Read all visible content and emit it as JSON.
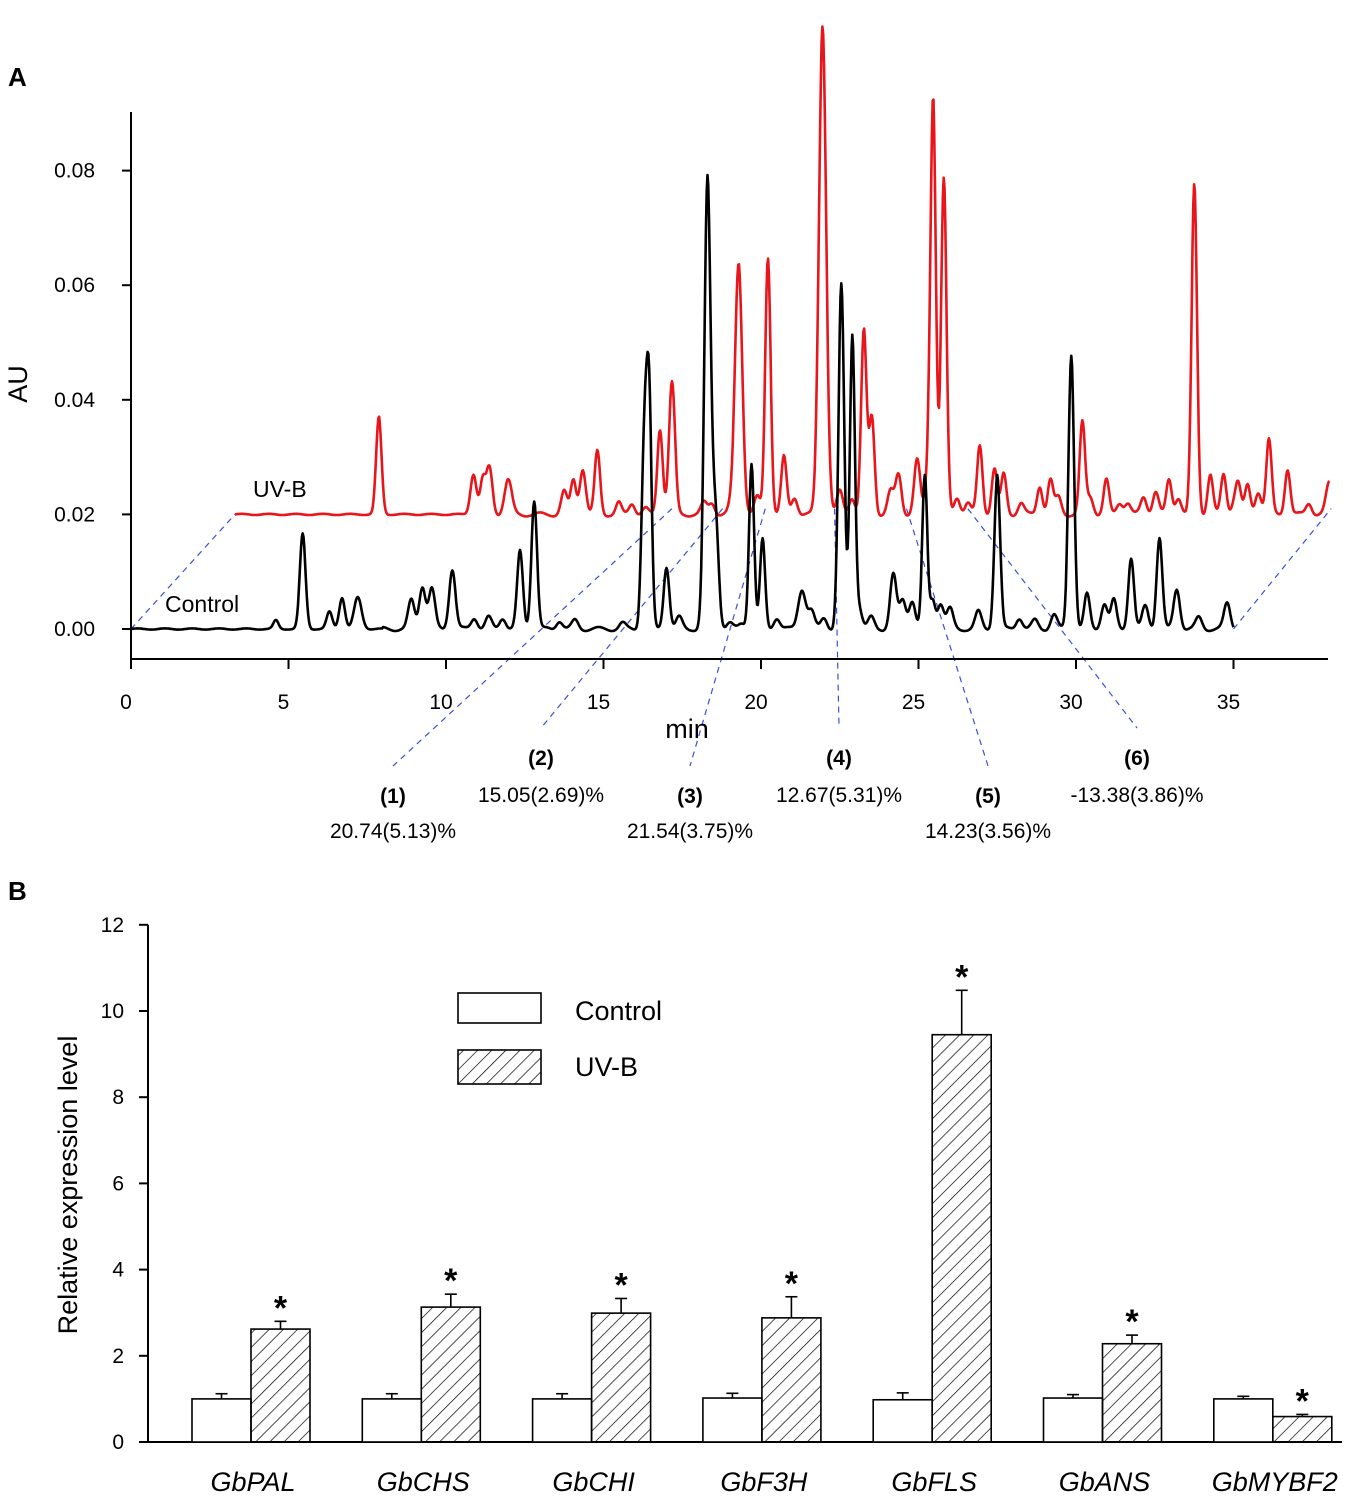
{
  "colors": {
    "uvb_trace": "#e8151b",
    "control_trace": "#000000",
    "guide": "#3b4fd8",
    "axis": "#000000"
  },
  "panels": {
    "a_label": "A",
    "b_label": "B"
  },
  "chart_data": [
    {
      "type": "line",
      "panel": "A",
      "title": "",
      "xlabel": "min",
      "ylabel": "AU",
      "xlim": [
        0,
        38
      ],
      "ylim": [
        -0.005,
        0.09
      ],
      "xticks": [
        "0",
        "5",
        "10",
        "15",
        "20",
        "25",
        "30",
        "35"
      ],
      "yticks": [
        "0.00",
        "0.02",
        "0.04",
        "0.06",
        "0.08"
      ],
      "series": [
        {
          "name": "UV-B",
          "offset": {
            "x_min": 3.3,
            "y_au": 0.02
          },
          "range": [
            0,
            34.9
          ],
          "baseline": 0.0,
          "peaks": [
            [
              5.4,
              0.017,
              0.09
            ],
            [
              8.95,
              0.007,
              0.1
            ],
            [
              9.3,
              0.006,
              0.09
            ],
            [
              9.55,
              0.008,
              0.1
            ],
            [
              10.25,
              0.006,
              0.12
            ],
            [
              12.35,
              0.004,
              0.1
            ],
            [
              12.7,
              0.006,
              0.09
            ],
            [
              13.05,
              0.008,
              0.1
            ],
            [
              13.6,
              0.011,
              0.09
            ],
            [
              14.4,
              0.002,
              0.09
            ],
            [
              14.9,
              0.002,
              0.1
            ],
            [
              15.4,
              0.001,
              0.1
            ],
            [
              15.95,
              0.015,
              0.09
            ],
            [
              16.4,
              0.023,
              0.1
            ],
            [
              17.6,
              0.002,
              0.1
            ],
            [
              17.9,
              0.002,
              0.1
            ],
            [
              18.6,
              0.001,
              0.1
            ],
            [
              18.9,
              0.044,
              0.12
            ],
            [
              19.6,
              0.003,
              0.1
            ],
            [
              20.0,
              0.045,
              0.09
            ],
            [
              20.6,
              0.01,
              0.09
            ],
            [
              21.0,
              0.003,
              0.1
            ],
            [
              22.05,
              0.0855,
              0.12
            ],
            [
              22.7,
              0.004,
              0.1
            ],
            [
              23.15,
              0.003,
              0.1
            ],
            [
              23.6,
              0.032,
              0.09
            ],
            [
              23.9,
              0.017,
              0.09
            ],
            [
              24.6,
              0.004,
              0.1
            ],
            [
              24.9,
              0.007,
              0.1
            ],
            [
              25.6,
              0.0095,
              0.1
            ],
            [
              26.0,
              0.006,
              0.09
            ],
            [
              26.2,
              0.0725,
              0.09
            ],
            [
              26.6,
              0.0585,
              0.09
            ],
            [
              27.1,
              0.003,
              0.1
            ],
            [
              27.5,
              0.002,
              0.1
            ],
            [
              27.95,
              0.012,
              0.09
            ],
            [
              28.5,
              0.008,
              0.09
            ],
            [
              28.85,
              0.007,
              0.09
            ],
            [
              29.5,
              0.002,
              0.1
            ],
            [
              30.2,
              0.005,
              0.09
            ],
            [
              30.6,
              0.006,
              0.09
            ],
            [
              30.9,
              0.003,
              0.1
            ],
            [
              31.8,
              0.016,
              0.09
            ],
            [
              32.1,
              0.003,
              0.1
            ],
            [
              32.7,
              0.006,
              0.09
            ],
            [
              33.2,
              0.002,
              0.1
            ],
            [
              33.5,
              0.002,
              0.1
            ],
            [
              34.1,
              0.003,
              0.1
            ],
            [
              34.55,
              0.004,
              0.1
            ],
            [
              35.05,
              0.006,
              0.09
            ],
            [
              35.4,
              0.003,
              0.1
            ],
            [
              36.0,
              0.0575,
              0.09
            ],
            [
              36.6,
              0.007,
              0.09
            ],
            [
              37.1,
              0.007,
              0.09
            ],
            [
              37.5,
              0.002,
              0.1
            ],
            [
              37.65,
              0.005,
              0.09
            ],
            [
              38.0,
              0.005,
              0.09
            ],
            [
              38.4,
              0.004,
              0.1
            ],
            [
              38.8,
              0.013,
              0.09
            ],
            [
              39.5,
              0.008,
              0.09
            ],
            [
              40.3,
              0.002,
              0.1
            ],
            [
              41.0,
              0.002,
              0.1
            ],
            [
              41.1,
              0.004,
              0.1
            ],
            [
              41.4,
              0.0015,
              0.1
            ]
          ]
        },
        {
          "name": "Control",
          "offset": {
            "x_min": 0,
            "y_au": 0
          },
          "range": [
            0,
            35.0
          ],
          "baseline": 0.0,
          "peaks": [
            [
              4.6,
              0.0015,
              0.08
            ],
            [
              5.45,
              0.0166,
              0.09
            ],
            [
              6.3,
              0.003,
              0.09
            ],
            [
              6.7,
              0.0055,
              0.09
            ],
            [
              7.2,
              0.0055,
              0.12
            ],
            [
              8.9,
              0.005,
              0.1
            ],
            [
              9.25,
              0.0075,
              0.1
            ],
            [
              9.55,
              0.007,
              0.1
            ],
            [
              10.2,
              0.0105,
              0.1
            ],
            [
              10.9,
              0.002,
              0.1
            ],
            [
              11.35,
              0.002,
              0.1
            ],
            [
              11.8,
              0.002,
              0.1
            ],
            [
              12.35,
              0.0135,
              0.09
            ],
            [
              12.8,
              0.0225,
              0.09
            ],
            [
              13.6,
              0.0015,
              0.1
            ],
            [
              14.1,
              0.0015,
              0.1
            ],
            [
              15.6,
              0.001,
              0.1
            ],
            [
              16.3,
              0.033,
              0.09
            ],
            [
              16.45,
              0.037,
              0.08
            ],
            [
              17.0,
              0.011,
              0.09
            ],
            [
              17.4,
              0.002,
              0.1
            ],
            [
              18.3,
              0.078,
              0.1
            ],
            [
              18.55,
              0.02,
              0.1
            ],
            [
              19.0,
              0.001,
              0.1
            ],
            [
              19.4,
              0.001,
              0.1
            ],
            [
              19.7,
              0.029,
              0.08
            ],
            [
              20.05,
              0.0155,
              0.08
            ],
            [
              20.5,
              0.002,
              0.1
            ],
            [
              21.3,
              0.007,
              0.12
            ],
            [
              21.6,
              0.003,
              0.1
            ],
            [
              22.0,
              0.002,
              0.1
            ],
            [
              22.55,
              0.06,
              0.09
            ],
            [
              22.9,
              0.051,
              0.08
            ],
            [
              23.1,
              0.004,
              0.1
            ],
            [
              23.5,
              0.002,
              0.1
            ],
            [
              24.2,
              0.0095,
              0.1
            ],
            [
              24.5,
              0.005,
              0.1
            ],
            [
              24.8,
              0.005,
              0.1
            ],
            [
              25.2,
              0.0265,
              0.08
            ],
            [
              25.45,
              0.005,
              0.08
            ],
            [
              25.7,
              0.0045,
              0.1
            ],
            [
              26.0,
              0.0035,
              0.1
            ],
            [
              26.9,
              0.003,
              0.1
            ],
            [
              27.5,
              0.027,
              0.09
            ],
            [
              28.2,
              0.002,
              0.1
            ],
            [
              28.7,
              0.0015,
              0.1
            ],
            [
              29.3,
              0.0025,
              0.1
            ],
            [
              29.85,
              0.048,
              0.09
            ],
            [
              30.35,
              0.006,
              0.09
            ],
            [
              30.9,
              0.0045,
              0.1
            ],
            [
              31.2,
              0.005,
              0.09
            ],
            [
              31.75,
              0.0125,
              0.09
            ],
            [
              32.2,
              0.004,
              0.1
            ],
            [
              32.65,
              0.016,
              0.09
            ],
            [
              33.2,
              0.007,
              0.1
            ],
            [
              33.9,
              0.002,
              0.1
            ],
            [
              34.8,
              0.0045,
              0.1
            ]
          ]
        }
      ],
      "series_labels": {
        "uvb": "UV-B",
        "control": "Control"
      },
      "annotations": [
        {
          "id": "(1)",
          "value": "20.74(5.13)%",
          "peak_min": 16.4
        },
        {
          "id": "(2)",
          "value": "15.05(2.69)%",
          "peak_min": 18.3
        },
        {
          "id": "(3)",
          "value": "21.54(3.75)%",
          "peak_min": 19.9
        },
        {
          "id": "(4)",
          "value": "12.67(5.31)%",
          "peak_min": 22.5
        },
        {
          "id": "(5)",
          "value": "14.23(3.56)%",
          "peak_min": 25.2
        },
        {
          "id": "(6)",
          "value": "-13.38(3.86)%",
          "peak_min": 27.5
        }
      ]
    },
    {
      "type": "bar",
      "panel": "B",
      "title": "",
      "xlabel": "",
      "ylabel": "Relative expression level",
      "ylim": [
        0,
        12
      ],
      "yticks": [
        "0",
        "2",
        "4",
        "6",
        "8",
        "10",
        "12"
      ],
      "categories": [
        "GbPAL",
        "GbCHS",
        "GbCHI",
        "GbF3H",
        "GbFLS",
        "GbANS",
        "GbMYBF2"
      ],
      "series": [
        {
          "name": "Control",
          "pattern": "open",
          "values": [
            1.0,
            1.0,
            1.0,
            1.02,
            0.98,
            1.02,
            1.0
          ],
          "errors": [
            0.12,
            0.12,
            0.12,
            0.11,
            0.16,
            0.08,
            0.06
          ]
        },
        {
          "name": "UV-B",
          "pattern": "hatched",
          "values": [
            2.62,
            3.13,
            2.99,
            2.88,
            9.45,
            2.28,
            0.59
          ],
          "errors": [
            0.18,
            0.3,
            0.34,
            0.49,
            1.03,
            0.2,
            0.05
          ]
        }
      ],
      "significance": [
        "*",
        "*",
        "*",
        "*",
        "*",
        "*",
        "*"
      ],
      "legend": {
        "position": "top-center",
        "entries": [
          "Control",
          "UV-B"
        ]
      }
    }
  ]
}
